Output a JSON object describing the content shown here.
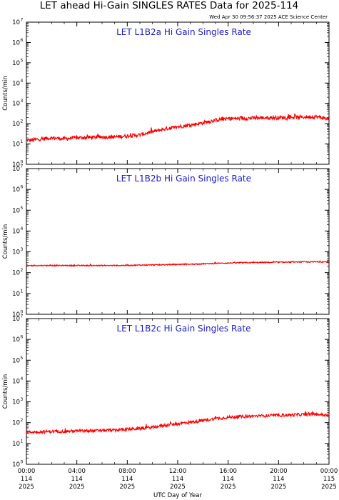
{
  "title": "LET ahead Hi-Gain SINGLES RATES Data for 2025-114",
  "timestamp": "Wed Apr 30 09:56:37 2025 ACE Science Center",
  "colors": {
    "trace": "#ff0000",
    "panel_title": "#1a1acc",
    "axes": "#000000"
  },
  "chart_data": [
    {
      "type": "line",
      "title": "LET L1B2a Hi Gain Singles Rate",
      "ylabel": "Counts/min",
      "yscale": "log",
      "ylim": [
        1,
        10000000
      ],
      "xlim": [
        0,
        24
      ],
      "x": [
        0,
        1,
        2,
        3,
        4,
        5,
        6,
        7,
        8,
        9,
        10,
        11,
        12,
        13,
        14,
        15,
        16,
        17,
        18,
        19,
        20,
        21,
        22,
        23,
        24
      ],
      "series": [
        {
          "values": [
            15,
            17,
            20,
            18,
            20,
            21,
            22,
            22,
            25,
            28,
            40,
            55,
            70,
            85,
            110,
            150,
            180,
            180,
            190,
            195,
            200,
            205,
            210,
            220,
            170
          ]
        }
      ]
    },
    {
      "type": "line",
      "title": "LET L1B2b Hi Gain Singles Rate",
      "ylabel": "Counts/min",
      "yscale": "log",
      "ylim": [
        1,
        10000000
      ],
      "xlim": [
        0,
        24
      ],
      "x": [
        0,
        1,
        2,
        3,
        4,
        5,
        6,
        7,
        8,
        9,
        10,
        11,
        12,
        13,
        14,
        15,
        16,
        17,
        18,
        19,
        20,
        21,
        22,
        23,
        24
      ],
      "series": [
        {
          "values": [
            220,
            220,
            220,
            220,
            220,
            220,
            220,
            220,
            225,
            230,
            235,
            240,
            250,
            255,
            265,
            280,
            290,
            300,
            305,
            310,
            315,
            320,
            325,
            330,
            330
          ]
        }
      ]
    },
    {
      "type": "line",
      "title": "LET L1B2c Hi Gain Singles Rate",
      "ylabel": "Counts/min",
      "yscale": "log",
      "ylim": [
        1,
        10000000
      ],
      "xlim": [
        0,
        24
      ],
      "x": [
        0,
        1,
        2,
        3,
        4,
        5,
        6,
        7,
        8,
        9,
        10,
        11,
        12,
        13,
        14,
        15,
        16,
        17,
        18,
        19,
        20,
        21,
        22,
        23,
        24
      ],
      "series": [
        {
          "values": [
            35,
            36,
            38,
            38,
            40,
            40,
            42,
            44,
            48,
            52,
            60,
            75,
            90,
            105,
            125,
            155,
            180,
            195,
            205,
            215,
            225,
            235,
            245,
            255,
            220
          ]
        }
      ]
    }
  ],
  "y_ticks": [
    {
      "base": "10",
      "exp": "0"
    },
    {
      "base": "10",
      "exp": "1"
    },
    {
      "base": "10",
      "exp": "2"
    },
    {
      "base": "10",
      "exp": "3"
    },
    {
      "base": "10",
      "exp": "4"
    },
    {
      "base": "10",
      "exp": "5"
    },
    {
      "base": "10",
      "exp": "6"
    },
    {
      "base": "10",
      "exp": "7"
    }
  ],
  "x_ticks": [
    {
      "time": "00:00",
      "doy": "114",
      "year": "2025"
    },
    {
      "time": "04:00",
      "doy": "114",
      "year": "2025"
    },
    {
      "time": "08:00",
      "doy": "114",
      "year": "2025"
    },
    {
      "time": "12:00",
      "doy": "114",
      "year": "2025"
    },
    {
      "time": "16:00",
      "doy": "114",
      "year": "2025"
    },
    {
      "time": "20:00",
      "doy": "114",
      "year": "2025"
    },
    {
      "time": "00:00",
      "doy": "115",
      "year": "2025"
    }
  ],
  "xlabel": "UTC Day of Year"
}
